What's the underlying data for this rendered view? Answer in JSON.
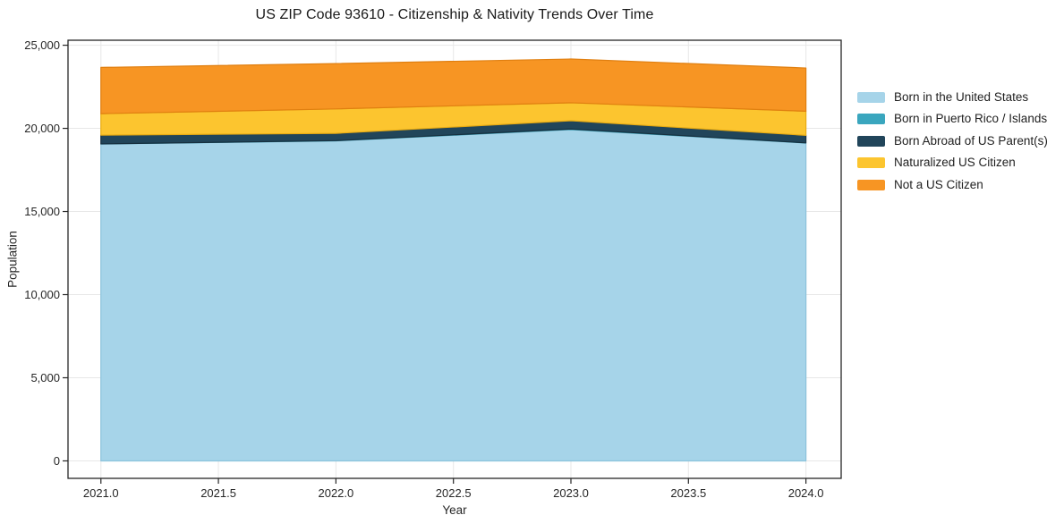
{
  "chart_data": {
    "type": "area",
    "stacked": true,
    "title": "US ZIP Code 93610 - Citizenship & Nativity Trends Over Time",
    "xlabel": "Year",
    "ylabel": "Population",
    "x": [
      2021,
      2022,
      2023,
      2024
    ],
    "series": [
      {
        "name": "Born in the United States",
        "values": [
          19050,
          19240,
          19920,
          19110
        ],
        "color": "#a6d4e9",
        "edge": "#8cc3dc",
        "edge_width": 1.2
      },
      {
        "name": "Born in Puerto Rico / Islands",
        "values": [
          15,
          20,
          40,
          15
        ],
        "color": "#3aa6be",
        "edge": "#2e93a9",
        "edge_width": 0.8
      },
      {
        "name": "Born Abroad of US Parent(s)",
        "values": [
          530,
          440,
          500,
          455
        ],
        "color": "#21455a",
        "edge": "#17303f",
        "edge_width": 1.2
      },
      {
        "name": "Naturalized US Citizen",
        "values": [
          1290,
          1470,
          1080,
          1450
        ],
        "color": "#fcc52f",
        "edge": "#e9ac13",
        "edge_width": 1.2
      },
      {
        "name": "Not a US Citizen",
        "values": [
          2780,
          2725,
          2630,
          2600
        ],
        "color": "#f79523",
        "edge": "#e07f10",
        "edge_width": 1.2
      }
    ],
    "totals": [
      23665,
      23895,
      24170,
      23630
    ],
    "xlim": [
      2020.86,
      2024.15
    ],
    "ylim": [
      -1050,
      25300
    ],
    "xticks": {
      "values": [
        2021.0,
        2021.5,
        2022.0,
        2022.5,
        2023.0,
        2023.5,
        2024.0
      ],
      "labels": [
        "2021.0",
        "2021.5",
        "2022.0",
        "2022.5",
        "2023.0",
        "2023.5",
        "2024.0"
      ]
    },
    "yticks": {
      "values": [
        0,
        5000,
        10000,
        15000,
        20000,
        25000
      ],
      "labels": [
        "0",
        "5,000",
        "10,000",
        "15,000",
        "20,000",
        "25,000"
      ]
    },
    "grid": true,
    "legend_position": "right-outside"
  },
  "colors": {
    "background": "#ffffff",
    "grid": "#e7e7e7",
    "spine": "#262626",
    "tick_text": "#262626",
    "title_text": "#1a1a1a"
  }
}
